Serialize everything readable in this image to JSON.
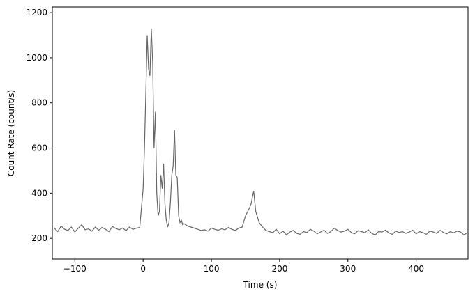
{
  "chart_data": {
    "type": "line",
    "xlabel": "Time (s)",
    "ylabel": "Count Rate (count/s)",
    "xlim": [
      -133,
      476
    ],
    "ylim": [
      108,
      1225
    ],
    "xticks": [
      {
        "value": -100,
        "label": "−100"
      },
      0,
      100,
      200,
      300,
      400
    ],
    "yticks": [
      200,
      400,
      600,
      800,
      1000,
      1200
    ],
    "x": [
      -130,
      -125,
      -120,
      -115,
      -110,
      -105,
      -100,
      -95,
      -90,
      -85,
      -80,
      -75,
      -70,
      -65,
      -60,
      -55,
      -50,
      -45,
      -40,
      -35,
      -30,
      -25,
      -20,
      -15,
      -10,
      -5,
      0,
      2,
      4,
      6,
      8,
      10,
      12,
      14,
      16,
      18,
      20,
      22,
      24,
      26,
      28,
      30,
      32,
      34,
      36,
      38,
      40,
      42,
      44,
      46,
      48,
      50,
      52,
      54,
      56,
      58,
      60,
      65,
      70,
      75,
      80,
      85,
      90,
      95,
      100,
      105,
      110,
      115,
      120,
      125,
      130,
      135,
      140,
      145,
      150,
      155,
      158,
      162,
      165,
      170,
      175,
      180,
      185,
      190,
      195,
      200,
      205,
      210,
      215,
      220,
      225,
      230,
      235,
      240,
      245,
      250,
      255,
      260,
      265,
      270,
      275,
      280,
      285,
      290,
      295,
      300,
      305,
      310,
      315,
      320,
      325,
      330,
      335,
      340,
      345,
      350,
      355,
      360,
      365,
      370,
      375,
      380,
      385,
      390,
      395,
      400,
      405,
      410,
      415,
      420,
      425,
      430,
      435,
      440,
      445,
      450,
      455,
      460,
      465,
      470,
      475
    ],
    "series": [
      {
        "color": "#666666",
        "values": [
          245,
          230,
          255,
          240,
          235,
          250,
          228,
          245,
          260,
          238,
          242,
          232,
          250,
          236,
          248,
          240,
          230,
          252,
          244,
          238,
          246,
          234,
          250,
          240,
          245,
          248,
          420,
          600,
          850,
          1100,
          950,
          920,
          1130,
          980,
          600,
          760,
          400,
          300,
          320,
          480,
          420,
          530,
          350,
          280,
          250,
          270,
          360,
          480,
          520,
          680,
          480,
          470,
          300,
          270,
          280,
          260,
          265,
          255,
          250,
          245,
          240,
          235,
          238,
          232,
          245,
          240,
          236,
          242,
          238,
          248,
          240,
          235,
          245,
          250,
          300,
          330,
          350,
          410,
          320,
          270,
          250,
          235,
          230,
          225,
          240,
          220,
          232,
          215,
          228,
          235,
          222,
          218,
          230,
          226,
          240,
          232,
          220,
          228,
          236,
          222,
          230,
          245,
          235,
          228,
          232,
          240,
          226,
          220,
          234,
          230,
          225,
          238,
          222,
          215,
          230,
          228,
          236,
          224,
          218,
          232,
          226,
          230,
          222,
          228,
          236,
          220,
          230,
          225,
          218,
          232,
          228,
          222,
          235,
          226,
          220,
          230,
          224,
          232,
          228,
          215,
          225
        ]
      }
    ]
  }
}
